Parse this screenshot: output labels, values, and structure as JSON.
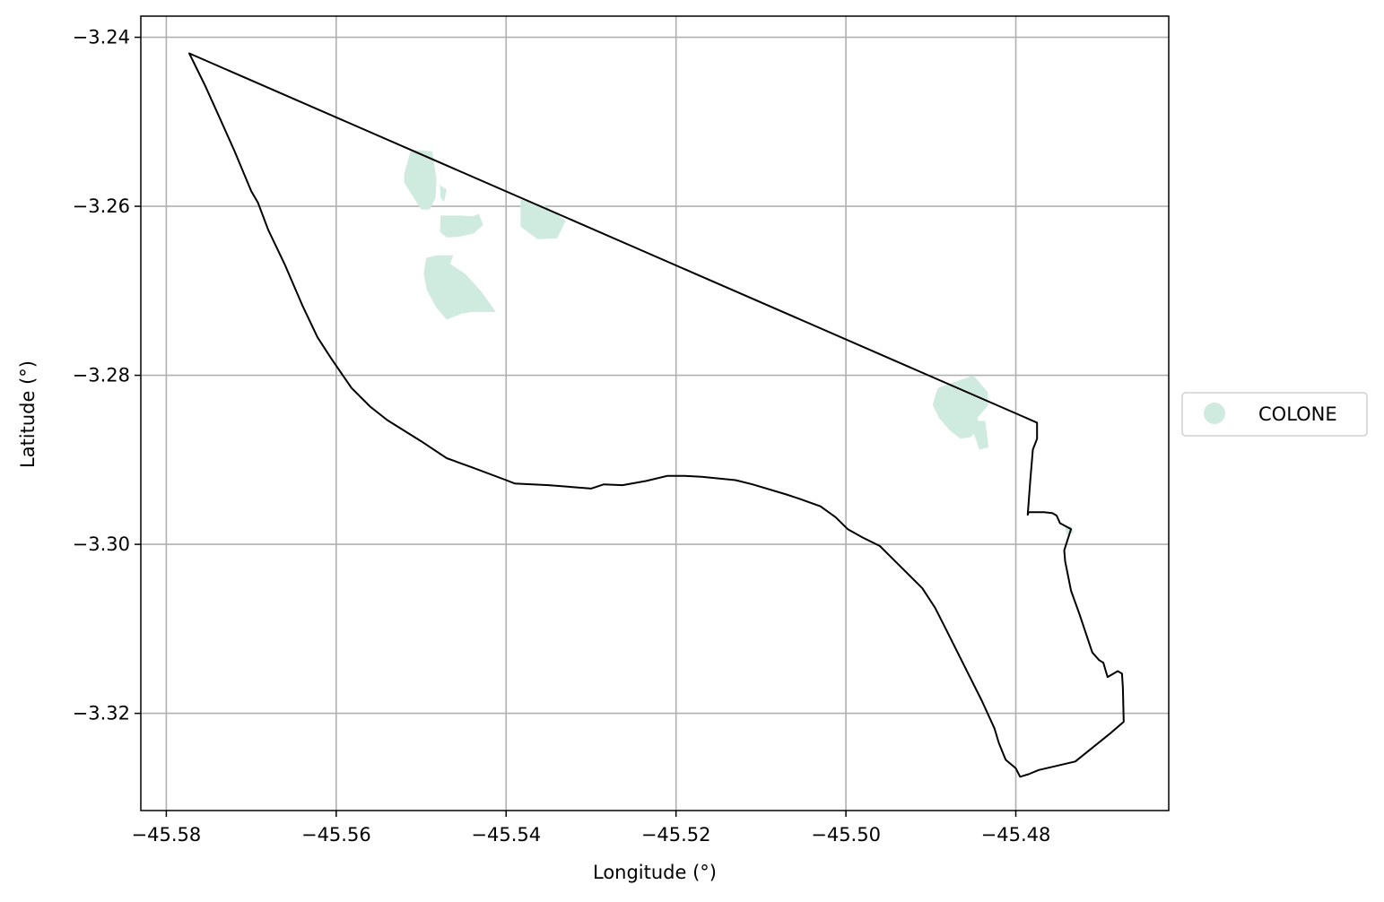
{
  "chart_data": {
    "type": "map",
    "xlabel": "Longitude (°)",
    "ylabel": "Latitude (°)",
    "xlim": [
      -45.583,
      -45.462
    ],
    "ylim": [
      -3.3315,
      -3.2375
    ],
    "x_ticks": [
      -45.58,
      -45.56,
      -45.54,
      -45.52,
      -45.5,
      -45.48
    ],
    "x_tick_labels": [
      "−45.58",
      "−45.56",
      "−45.54",
      "−45.52",
      "−45.50",
      "−45.48"
    ],
    "y_ticks": [
      -3.24,
      -3.26,
      -3.28,
      -3.3,
      -3.32
    ],
    "y_tick_labels": [
      "−3.24",
      "−3.26",
      "−3.28",
      "−3.30",
      "−3.32"
    ],
    "grid": true,
    "legend": {
      "placement": "outside right",
      "entries": [
        {
          "label": "COLONE",
          "color": "#cfeadf"
        }
      ]
    },
    "boundary": {
      "stroke": "#000000",
      "points": [
        [
          -45.5773,
          -3.2419
        ],
        [
          -45.5754,
          -3.2458
        ],
        [
          -45.5736,
          -3.2498
        ],
        [
          -45.572,
          -3.2534
        ],
        [
          -45.57,
          -3.2582
        ],
        [
          -45.5692,
          -3.2596
        ],
        [
          -45.568,
          -3.2628
        ],
        [
          -45.566,
          -3.267
        ],
        [
          -45.564,
          -3.2717
        ],
        [
          -45.5622,
          -3.2755
        ],
        [
          -45.5606,
          -3.278
        ],
        [
          -45.5582,
          -3.2815
        ],
        [
          -45.556,
          -3.2837
        ],
        [
          -45.554,
          -3.2853
        ],
        [
          -45.55,
          -3.2878
        ],
        [
          -45.547,
          -3.2898
        ],
        [
          -45.544,
          -3.2909
        ],
        [
          -45.54,
          -3.2924
        ],
        [
          -45.539,
          -3.2928
        ],
        [
          -45.535,
          -3.293
        ],
        [
          -45.53,
          -3.2934
        ],
        [
          -45.5285,
          -3.2929
        ],
        [
          -45.5263,
          -3.293
        ],
        [
          -45.5235,
          -3.2925
        ],
        [
          -45.521,
          -3.2919
        ],
        [
          -45.519,
          -3.2919
        ],
        [
          -45.517,
          -3.292
        ],
        [
          -45.513,
          -3.2924
        ],
        [
          -45.511,
          -3.2929
        ],
        [
          -45.507,
          -3.2941
        ],
        [
          -45.5055,
          -3.2946
        ],
        [
          -45.503,
          -3.2955
        ],
        [
          -45.5012,
          -3.2968
        ],
        [
          -45.4998,
          -3.2982
        ],
        [
          -45.498,
          -3.2992
        ],
        [
          -45.496,
          -3.3002
        ],
        [
          -45.494,
          -3.3022
        ],
        [
          -45.491,
          -3.3052
        ],
        [
          -45.4895,
          -3.3075
        ],
        [
          -45.488,
          -3.3105
        ],
        [
          -45.486,
          -3.3145
        ],
        [
          -45.484,
          -3.3185
        ],
        [
          -45.4825,
          -3.3218
        ],
        [
          -45.482,
          -3.3235
        ],
        [
          -45.4812,
          -3.3255
        ],
        [
          -45.48,
          -3.3265
        ],
        [
          -45.4795,
          -3.3275
        ],
        [
          -45.4785,
          -3.3272
        ],
        [
          -45.4773,
          -3.3267
        ],
        [
          -45.473,
          -3.3257
        ],
        [
          -45.4688,
          -3.3223
        ],
        [
          -45.4673,
          -3.321
        ],
        [
          -45.4674,
          -3.317
        ],
        [
          -45.4675,
          -3.3153
        ],
        [
          -45.468,
          -3.315
        ],
        [
          -45.4692,
          -3.3157
        ],
        [
          -45.4697,
          -3.314
        ],
        [
          -45.4702,
          -3.3137
        ],
        [
          -45.471,
          -3.3128
        ],
        [
          -45.4725,
          -3.3083
        ],
        [
          -45.4735,
          -3.3055
        ],
        [
          -45.4742,
          -3.302
        ],
        [
          -45.4743,
          -3.3007
        ],
        [
          -45.4735,
          -3.2982
        ],
        [
          -45.4748,
          -3.2975
        ],
        [
          -45.4752,
          -3.2966
        ],
        [
          -45.4757,
          -3.2963
        ],
        [
          -45.4767,
          -3.2962
        ],
        [
          -45.4785,
          -3.2962
        ],
        [
          -45.4786,
          -3.2965
        ],
        [
          -45.4783,
          -3.2925
        ],
        [
          -45.478,
          -3.2888
        ],
        [
          -45.4775,
          -3.2875
        ],
        [
          -45.4775,
          -3.2856
        ],
        [
          -45.5773,
          -3.2419
        ]
      ]
    },
    "colone_areas": [
      [
        [
          -45.5487,
          -3.2535
        ],
        [
          -45.5512,
          -3.2533
        ],
        [
          -45.552,
          -3.2562
        ],
        [
          -45.552,
          -3.2572
        ],
        [
          -45.551,
          -3.2588
        ],
        [
          -45.55,
          -3.2604
        ],
        [
          -45.549,
          -3.2604
        ],
        [
          -45.5483,
          -3.259
        ],
        [
          -45.5482,
          -3.2568
        ]
      ],
      [
        [
          -45.5478,
          -3.2575
        ],
        [
          -45.547,
          -3.258
        ],
        [
          -45.5473,
          -3.2595
        ],
        [
          -45.5477,
          -3.259
        ]
      ],
      [
        [
          -45.5462,
          -3.2658
        ],
        [
          -45.5482,
          -3.2658
        ],
        [
          -45.5494,
          -3.2661
        ],
        [
          -45.5497,
          -3.268
        ],
        [
          -45.5493,
          -3.27
        ],
        [
          -45.5482,
          -3.272
        ],
        [
          -45.547,
          -3.2734
        ],
        [
          -45.5452,
          -3.2727
        ],
        [
          -45.544,
          -3.2725
        ],
        [
          -45.5412,
          -3.2725
        ],
        [
          -45.543,
          -3.27
        ],
        [
          -45.5448,
          -3.268
        ],
        [
          -45.5466,
          -3.2668
        ]
      ],
      [
        [
          -45.5477,
          -3.2611
        ],
        [
          -45.5453,
          -3.2611
        ],
        [
          -45.544,
          -3.2612
        ],
        [
          -45.5432,
          -3.2609
        ],
        [
          -45.5427,
          -3.2622
        ],
        [
          -45.5438,
          -3.2632
        ],
        [
          -45.5455,
          -3.2636
        ],
        [
          -45.547,
          -3.2637
        ],
        [
          -45.5478,
          -3.263
        ]
      ],
      [
        [
          -45.5383,
          -3.2592
        ],
        [
          -45.5353,
          -3.26
        ],
        [
          -45.533,
          -3.2617
        ],
        [
          -45.534,
          -3.2638
        ],
        [
          -45.5363,
          -3.2639
        ],
        [
          -45.5383,
          -3.2624
        ]
      ],
      [
        [
          -45.4892,
          -3.2815
        ],
        [
          -45.485,
          -3.28
        ],
        [
          -45.4833,
          -3.282
        ],
        [
          -45.4833,
          -3.2836
        ],
        [
          -45.4845,
          -3.285
        ],
        [
          -45.4843,
          -3.286
        ],
        [
          -45.4853,
          -3.2873
        ],
        [
          -45.4865,
          -3.2875
        ],
        [
          -45.4877,
          -3.2866
        ],
        [
          -45.489,
          -3.2851
        ],
        [
          -45.4898,
          -3.2835
        ]
      ],
      [
        [
          -45.4857,
          -3.2854
        ],
        [
          -45.4836,
          -3.2854
        ],
        [
          -45.4832,
          -3.2885
        ],
        [
          -45.4843,
          -3.2888
        ],
        [
          -45.4848,
          -3.2873
        ]
      ],
      [
        [
          -45.4742,
          -3.298
        ],
        [
          -45.4735,
          -3.2978
        ],
        [
          -45.4732,
          -3.2986
        ],
        [
          -45.474,
          -3.2989
        ]
      ]
    ]
  }
}
